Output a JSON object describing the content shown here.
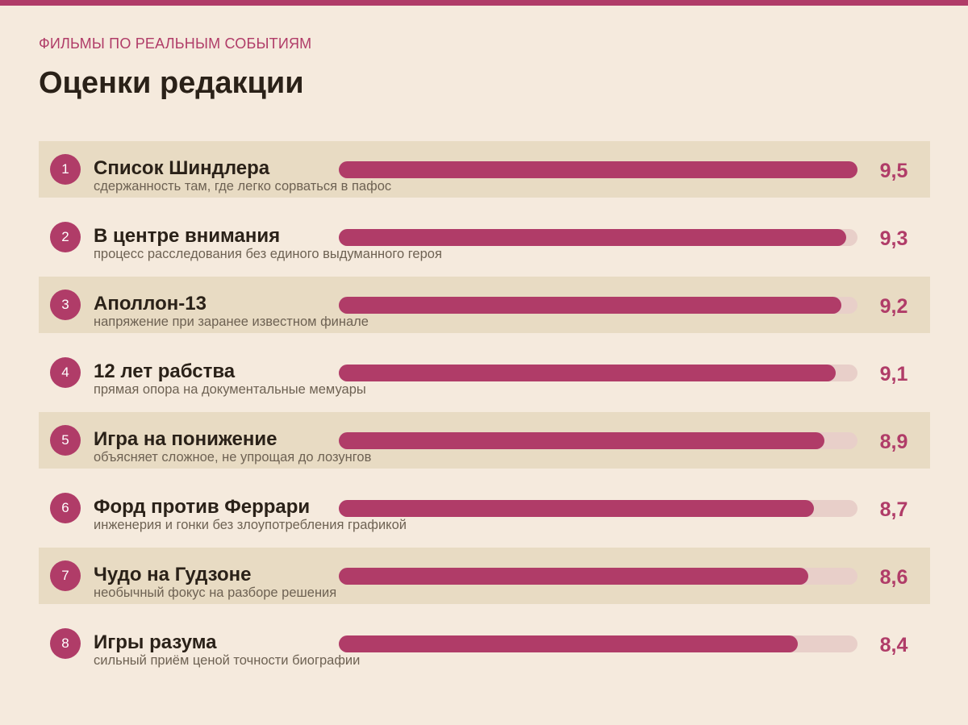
{
  "header": {
    "kicker": "ФИЛЬМЫ ПО РЕАЛЬНЫМ СОБЫТИЯМ",
    "title": "Оценки редакции"
  },
  "colors": {
    "accent": "#b03c68",
    "background": "#f5eadd",
    "row_shade": "#e8dbc3",
    "track": "#e8cfc9",
    "text": "#2a2118",
    "muted": "#6e6253"
  },
  "chart_data": {
    "type": "bar",
    "orientation": "horizontal",
    "title": "Оценки редакции",
    "xlim": [
      0,
      9.5
    ],
    "categories": [
      "Список Шиндлера",
      "В центре внимания",
      "Аполлон-13",
      "12 лет рабства",
      "Игра на понижение",
      "Форд против Феррари",
      "Чудо на Гудзоне",
      "Игры разума"
    ],
    "values": [
      9.5,
      9.3,
      9.2,
      9.1,
      8.9,
      8.7,
      8.6,
      8.4
    ],
    "rows": [
      {
        "rank": "1",
        "name": "Список Шиндлера",
        "note": "сдержанность там, где легко сорваться в пафос",
        "value": 9.5,
        "score_label": "9,5"
      },
      {
        "rank": "2",
        "name": "В центре внимания",
        "note": "процесс расследования без единого выдуманного героя",
        "value": 9.3,
        "score_label": "9,3"
      },
      {
        "rank": "3",
        "name": "Аполлон-13",
        "note": "напряжение при заранее известном финале",
        "value": 9.2,
        "score_label": "9,2"
      },
      {
        "rank": "4",
        "name": "12 лет рабства",
        "note": "прямая опора на документальные мемуары",
        "value": 9.1,
        "score_label": "9,1"
      },
      {
        "rank": "5",
        "name": "Игра на понижение",
        "note": "объясняет сложное, не упрощая до лозунгов",
        "value": 8.9,
        "score_label": "8,9"
      },
      {
        "rank": "6",
        "name": "Форд против Феррари",
        "note": "инженерия и гонки без злоупотребления графикой",
        "value": 8.7,
        "score_label": "8,7"
      },
      {
        "rank": "7",
        "name": "Чудо на Гудзоне",
        "note": "необычный фокус на разборе решения",
        "value": 8.6,
        "score_label": "8,6"
      },
      {
        "rank": "8",
        "name": "Игры разума",
        "note": "сильный приём ценой точности биографии",
        "value": 8.4,
        "score_label": "8,4"
      }
    ]
  }
}
